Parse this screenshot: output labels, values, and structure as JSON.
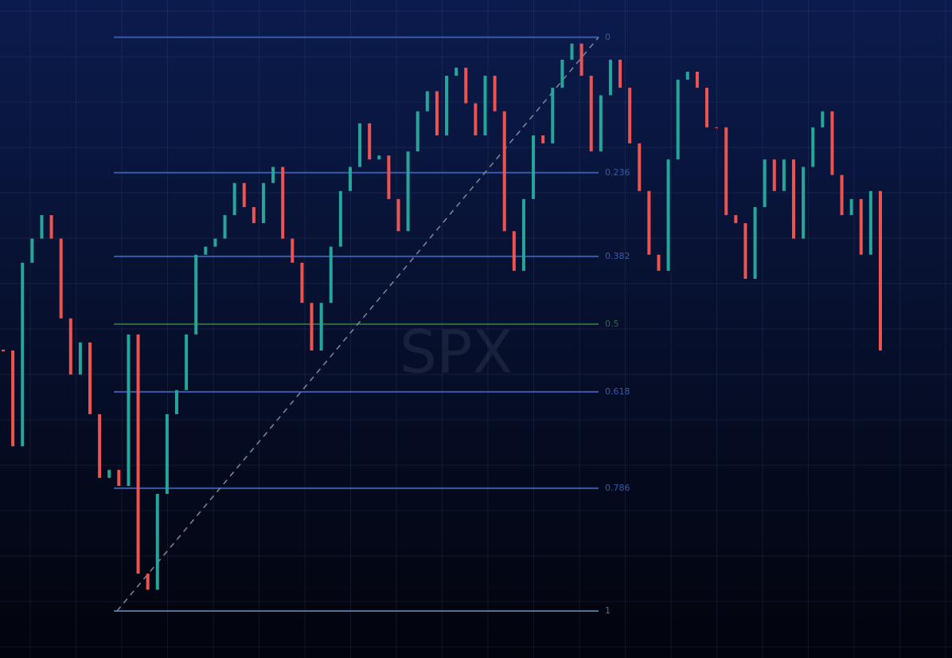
{
  "chart_data": {
    "type": "candlestick",
    "watermark": "SPX",
    "ylim": [
      1.082,
      -0.065
    ],
    "up_color": "#26a69a",
    "down_color": "#ef5350",
    "close": [
      0.546,
      0.713,
      0.393,
      0.351,
      0.31,
      0.351,
      0.49,
      0.588,
      0.532,
      0.657,
      0.768,
      0.754,
      0.782,
      0.518,
      0.935,
      0.963,
      0.796,
      0.657,
      0.615,
      0.518,
      0.379,
      0.365,
      0.351,
      0.31,
      0.254,
      0.296,
      0.324,
      0.254,
      0.226,
      0.351,
      0.393,
      0.463,
      0.546,
      0.463,
      0.365,
      0.268,
      0.226,
      0.15,
      0.213,
      0.206,
      0.282,
      0.338,
      0.199,
      0.129,
      0.094,
      0.171,
      0.067,
      0.053,
      0.115,
      0.171,
      0.067,
      0.129,
      0.338,
      0.407,
      0.282,
      0.171,
      0.185,
      0.088,
      0.039,
      0.011,
      0.067,
      0.199,
      0.101,
      0.039,
      0.088,
      0.185,
      0.268,
      0.379,
      0.407,
      0.213,
      0.074,
      0.06,
      0.088,
      0.157,
      0.157,
      0.31,
      0.324,
      0.421,
      0.296,
      0.213,
      0.268,
      0.213,
      0.351,
      0.226,
      0.157,
      0.129,
      0.24,
      0.31,
      0.282,
      0.379,
      0.268,
      0.546
    ],
    "levels": [
      0,
      0.236,
      0.382,
      0.5,
      0.618,
      0.786,
      1
    ],
    "level_colors": [
      "#3a5aa8",
      "#3a5aa8",
      "#3a5aa8",
      "#2f6a45",
      "#3a5aa8",
      "#3a5aa8",
      "#56708f"
    ]
  }
}
